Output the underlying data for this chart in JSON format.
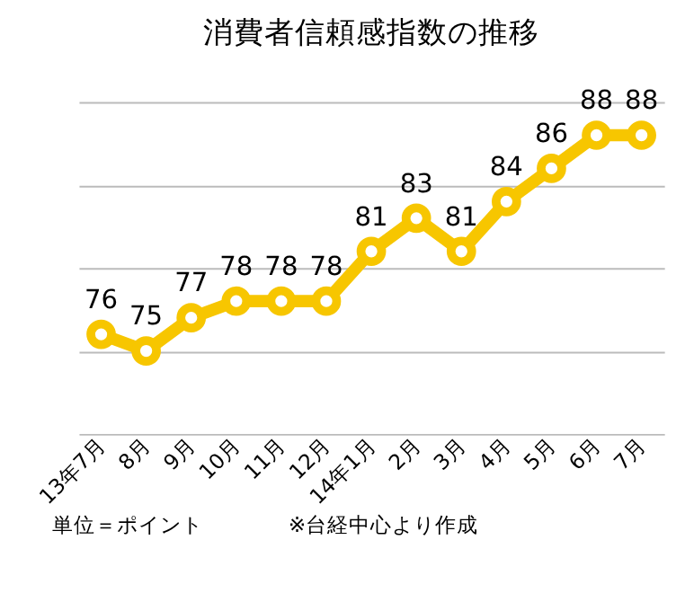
{
  "chart_data": {
    "type": "line",
    "title": "消費者信頼感指数の推移",
    "categories": [
      "13年7月",
      "8月",
      "9月",
      "10月",
      "11月",
      "12月",
      "14年1月",
      "2月",
      "3月",
      "4月",
      "5月",
      "6月",
      "7月"
    ],
    "series": [
      {
        "color": "#f7c600",
        "values": [
          76,
          75,
          77,
          78,
          78,
          78,
          81,
          83,
          81,
          84,
          86,
          88,
          88
        ]
      }
    ],
    "ylim": [
      70,
      90
    ],
    "yticks": [
      {
        "value": 70,
        "label": null
      },
      {
        "value": 75,
        "label": null
      },
      {
        "value": 80,
        "label": null
      },
      {
        "value": 85,
        "label": null
      },
      {
        "value": 90,
        "label": null
      }
    ],
    "tick_labels": "x",
    "grid": "y",
    "marker": "circle",
    "line_style": "solid",
    "data_labels": true,
    "annotations": [
      "単位＝ポイント",
      "※台経中心より作成"
    ]
  }
}
